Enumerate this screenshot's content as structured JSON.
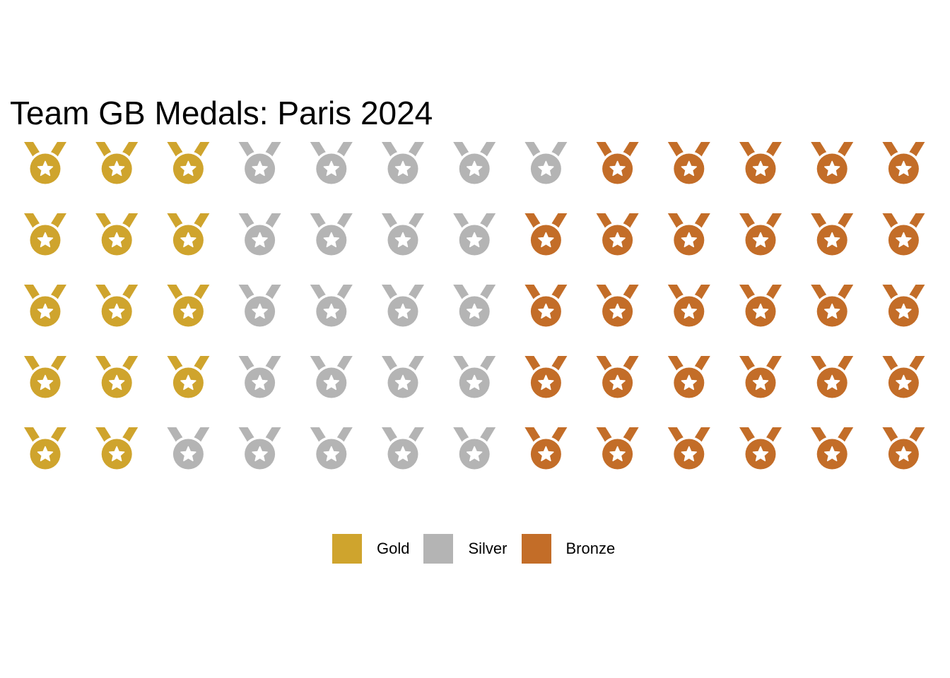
{
  "chart_data": {
    "type": "waffle",
    "title": "Team GB Medals: Paris 2024",
    "icon": "medal-icon",
    "grid": {
      "rows": 5,
      "columns": 13,
      "fill_order": "column-major, top to bottom"
    },
    "series": [
      {
        "name": "Gold",
        "value": 14,
        "color": "#CFA42D"
      },
      {
        "name": "Silver",
        "value": 22,
        "color": "#B4B4B4"
      },
      {
        "name": "Bronze",
        "value": 29,
        "color": "#C36D28"
      }
    ],
    "legend_position": "bottom"
  }
}
